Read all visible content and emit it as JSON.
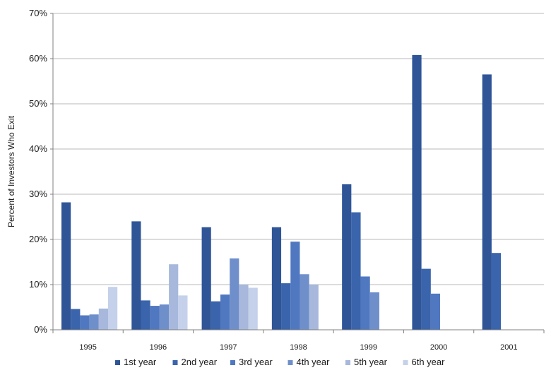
{
  "chart_data": {
    "type": "bar",
    "title": "",
    "xlabel": "",
    "ylabel": "Percent of Investors Who Exit",
    "ylim": [
      0,
      70
    ],
    "y_ticks": [
      "0%",
      "10%",
      "20%",
      "30%",
      "40%",
      "50%",
      "60%",
      "70%"
    ],
    "grid": "horizontal",
    "legend_position": "bottom",
    "categories": [
      "1995",
      "1996",
      "1997",
      "1998",
      "1999",
      "2000",
      "2001"
    ],
    "series": [
      {
        "name": "1st year",
        "color": "#2f5597",
        "values": [
          28.2,
          24.0,
          22.7,
          22.7,
          32.2,
          60.8,
          56.5
        ]
      },
      {
        "name": "2nd year",
        "color": "#3a64ab",
        "values": [
          4.6,
          6.5,
          6.3,
          10.3,
          26.0,
          13.5,
          17.0
        ]
      },
      {
        "name": "3rd year",
        "color": "#5078c0",
        "values": [
          3.2,
          5.3,
          7.8,
          19.5,
          11.8,
          8.0,
          0
        ]
      },
      {
        "name": "4th year",
        "color": "#6f8fcb",
        "values": [
          3.4,
          5.6,
          15.8,
          12.3,
          8.3,
          0,
          0
        ]
      },
      {
        "name": "5th year",
        "color": "#a7b8dc",
        "values": [
          4.7,
          14.5,
          10.0,
          10.0,
          0,
          0,
          0
        ]
      },
      {
        "name": "6th year",
        "color": "#c5d1ea",
        "values": [
          9.5,
          7.6,
          9.3,
          0,
          0,
          0,
          0
        ]
      }
    ]
  }
}
